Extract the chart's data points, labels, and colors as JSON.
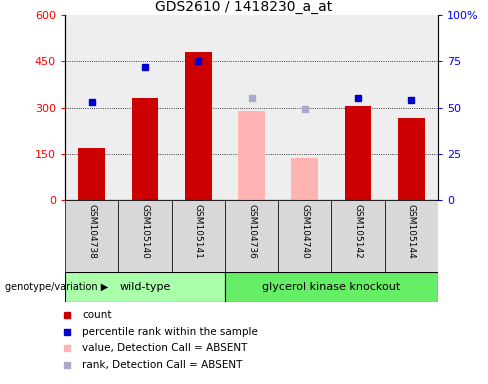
{
  "title": "GDS2610 / 1418230_a_at",
  "samples": [
    "GSM104738",
    "GSM105140",
    "GSM105141",
    "GSM104736",
    "GSM104740",
    "GSM105142",
    "GSM105144"
  ],
  "bar_values": [
    170,
    330,
    480,
    290,
    135,
    305,
    265
  ],
  "bar_colors": [
    "#cc0000",
    "#cc0000",
    "#cc0000",
    "#ffb3b3",
    "#ffb3b3",
    "#cc0000",
    "#cc0000"
  ],
  "dot_values": [
    53,
    72,
    75,
    55,
    49,
    55,
    54
  ],
  "dot_colors": [
    "#0000cc",
    "#0000cc",
    "#0000cc",
    "#aaaacc",
    "#aaaacc",
    "#0000cc",
    "#0000cc"
  ],
  "ylim_left": [
    0,
    600
  ],
  "ylim_right": [
    0,
    100
  ],
  "yticks_left": [
    0,
    150,
    300,
    450,
    600
  ],
  "ytick_labels_left": [
    "0",
    "150",
    "300",
    "450",
    "600"
  ],
  "yticks_right": [
    0,
    25,
    50,
    75,
    100
  ],
  "ytick_labels_right": [
    "0",
    "25",
    "50",
    "75",
    "100%"
  ],
  "genotype_labels": [
    "wild-type",
    "glycerol kinase knockout"
  ],
  "wildtype_color": "#aaffaa",
  "knockout_color": "#66ee66",
  "legend_items": [
    {
      "label": "count",
      "color": "#cc0000"
    },
    {
      "label": "percentile rank within the sample",
      "color": "#0000cc"
    },
    {
      "label": "value, Detection Call = ABSENT",
      "color": "#ffb3b3"
    },
    {
      "label": "rank, Detection Call = ABSENT",
      "color": "#aaaacc"
    }
  ],
  "plot_bg_color": "#eeeeee",
  "bar_width": 0.5,
  "dot_size": 5,
  "title_fontsize": 10,
  "tick_fontsize": 8,
  "legend_fontsize": 7.5,
  "xlabel_fontsize": 6.5
}
